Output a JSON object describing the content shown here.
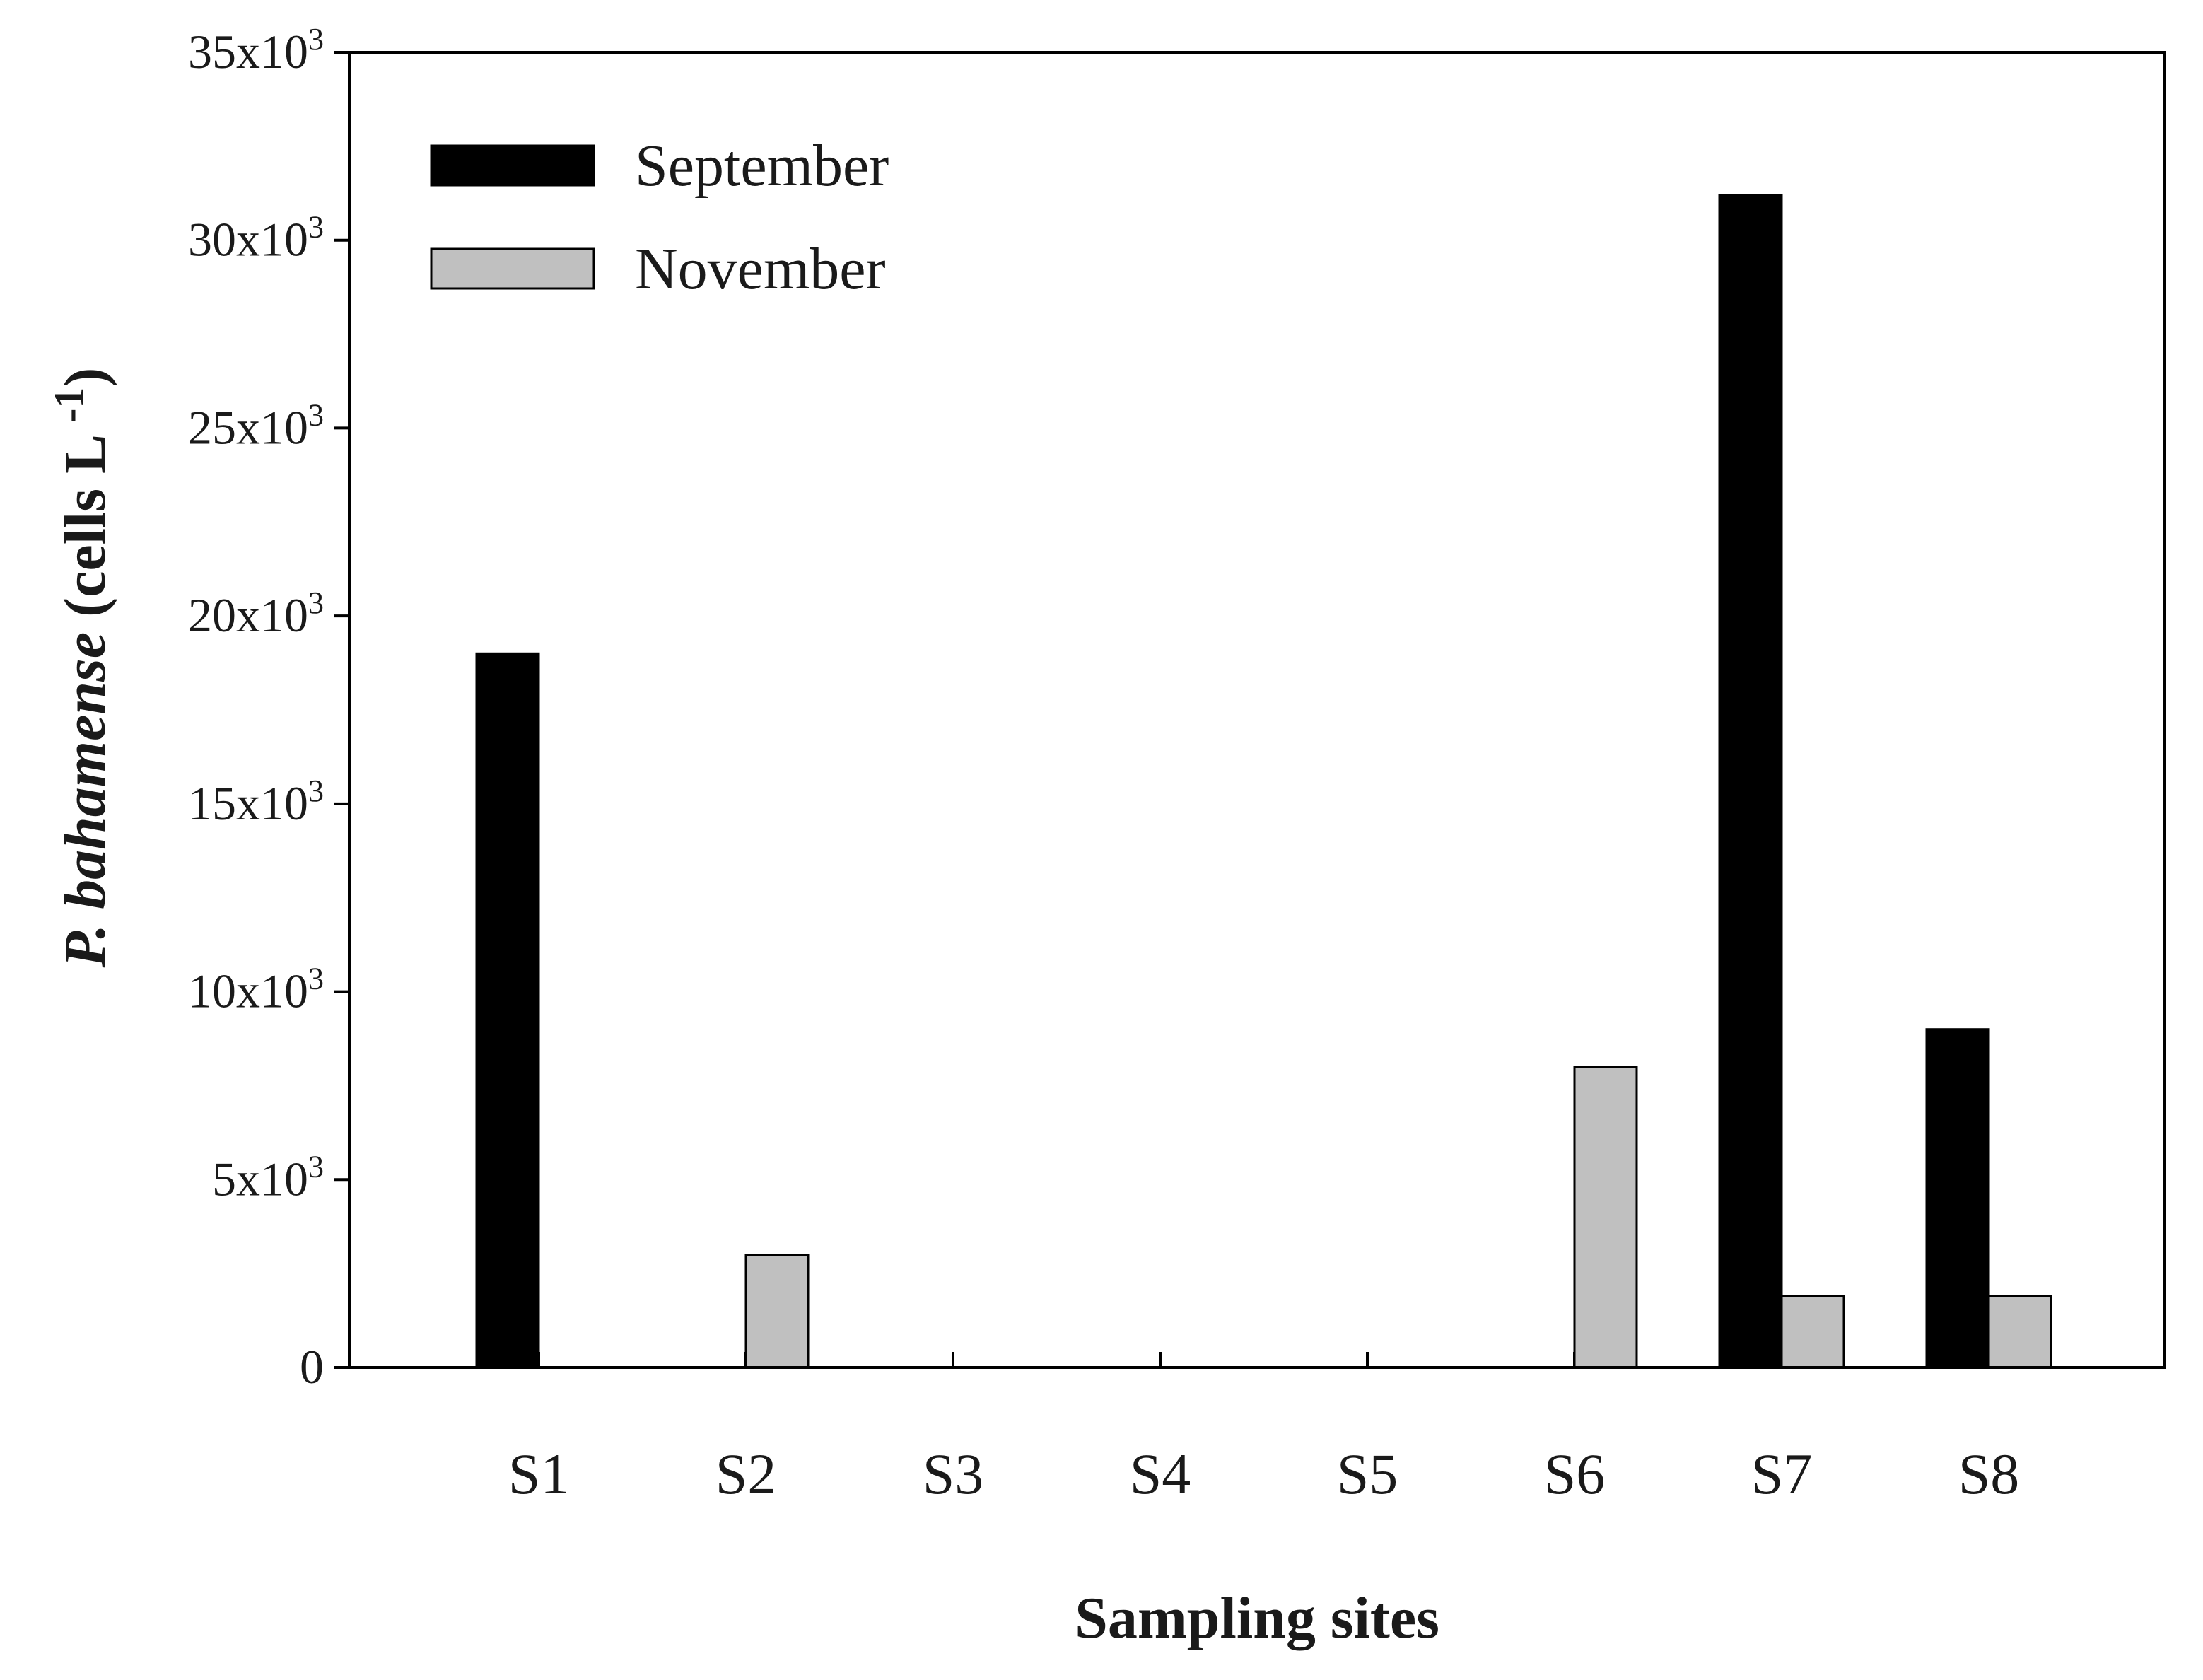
{
  "chart_data": {
    "type": "bar",
    "categories": [
      "S1",
      "S2",
      "S3",
      "S4",
      "S5",
      "S6",
      "S7",
      "S8"
    ],
    "series": [
      {
        "name": "September",
        "values": [
          19000,
          0,
          0,
          0,
          0,
          0,
          31200,
          9000
        ],
        "color": "#000000"
      },
      {
        "name": "November",
        "values": [
          0,
          3000,
          0,
          0,
          0,
          8000,
          1900,
          1900
        ],
        "color": "#c0c0c0"
      }
    ],
    "ylim": [
      0,
      35000
    ],
    "yticks": [
      0,
      5000,
      10000,
      15000,
      20000,
      25000,
      30000,
      35000
    ],
    "ytick_labels": [
      "0",
      "5x10",
      "10x10",
      "15x10",
      "20x10",
      "25x10",
      "30x10",
      "35x10"
    ],
    "ytick_exponent": "3",
    "xlabel": "Sampling sites",
    "ylabel": {
      "species": "P. bahamense",
      "unit": "(cells L",
      "exponent": "-1",
      "close": ")"
    },
    "grid": false,
    "legend_position": "top-left"
  }
}
